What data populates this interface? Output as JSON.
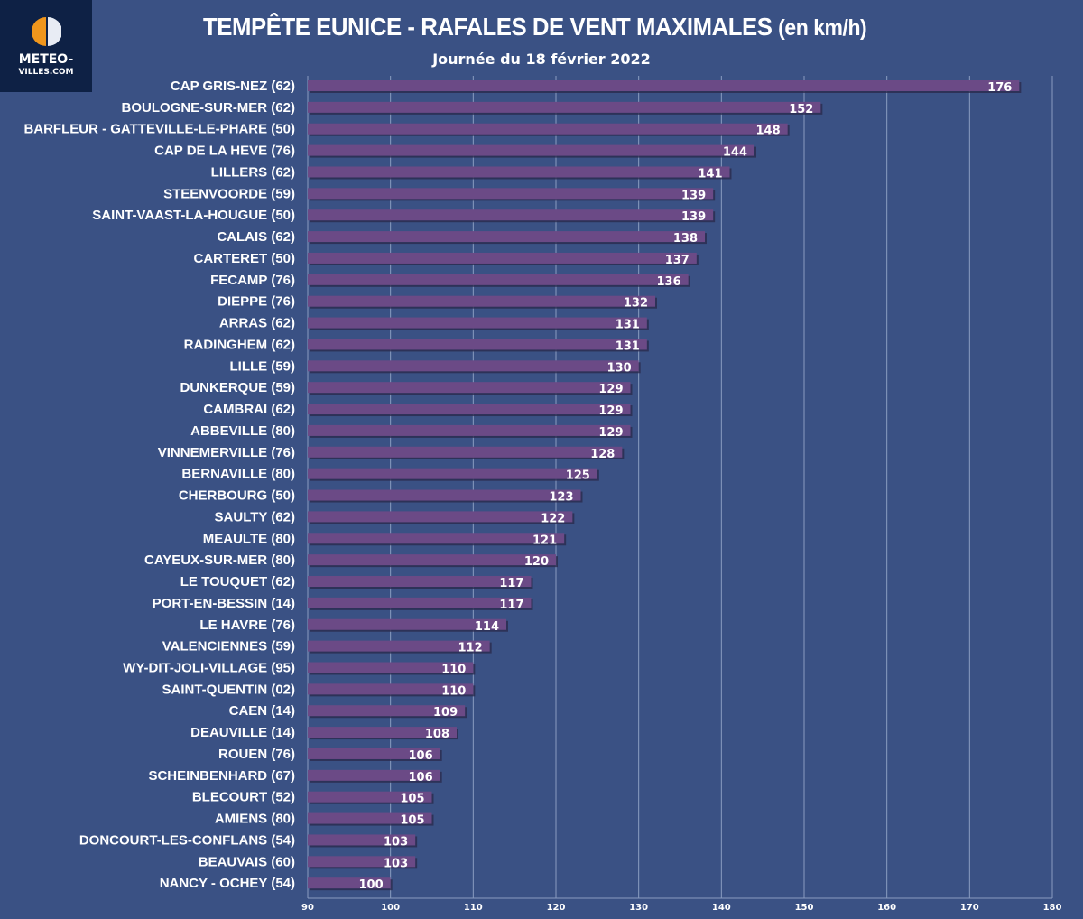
{
  "logo": {
    "line1": "METEO-",
    "line2": "VILLES.COM"
  },
  "chart_data": {
    "type": "bar",
    "orientation": "horizontal",
    "title": "TEMPÊTE EUNICE - RAFALES DE VENT MAXIMALES",
    "title_unit": "(en km/h)",
    "subtitle": "Journée du 18 février 2022",
    "categories": [
      "CAP GRIS-NEZ (62)",
      "BOULOGNE-SUR-MER (62)",
      "BARFLEUR - GATTEVILLE-LE-PHARE (50)",
      "CAP DE LA HEVE (76)",
      "LILLERS (62)",
      "STEENVOORDE (59)",
      "SAINT-VAAST-LA-HOUGUE (50)",
      "CALAIS (62)",
      "CARTERET (50)",
      "FECAMP (76)",
      "DIEPPE (76)",
      "ARRAS (62)",
      "RADINGHEM (62)",
      "LILLE (59)",
      "DUNKERQUE (59)",
      "CAMBRAI (62)",
      "ABBEVILLE (80)",
      "VINNEMERVILLE (76)",
      "BERNAVILLE (80)",
      "CHERBOURG (50)",
      "SAULTY (62)",
      "MEAULTE (80)",
      "CAYEUX-SUR-MER (80)",
      "LE TOUQUET (62)",
      "PORT-EN-BESSIN (14)",
      "LE HAVRE (76)",
      "VALENCIENNES (59)",
      "WY-DIT-JOLI-VILLAGE (95)",
      "SAINT-QUENTIN (02)",
      "CAEN (14)",
      "DEAUVILLE (14)",
      "ROUEN (76)",
      "SCHEINBENHARD (67)",
      "BLECOURT (52)",
      "AMIENS (80)",
      "DONCOURT-LES-CONFLANS (54)",
      "BEAUVAIS (60)",
      "NANCY - OCHEY (54)"
    ],
    "values": [
      176,
      152,
      148,
      144,
      141,
      139,
      139,
      138,
      137,
      136,
      132,
      131,
      131,
      130,
      129,
      129,
      129,
      128,
      125,
      123,
      122,
      121,
      120,
      117,
      117,
      114,
      112,
      110,
      110,
      109,
      108,
      106,
      106,
      105,
      105,
      103,
      103,
      100
    ],
    "xlim": [
      90,
      180
    ],
    "xticks": [
      90,
      100,
      110,
      120,
      130,
      140,
      150,
      160,
      170,
      180
    ],
    "grid": true,
    "colors": {
      "background": "#3a5184",
      "bar": "#6b4a86",
      "bar_shadow": "#2a2a4e",
      "grid": "#8a9cc0"
    }
  }
}
